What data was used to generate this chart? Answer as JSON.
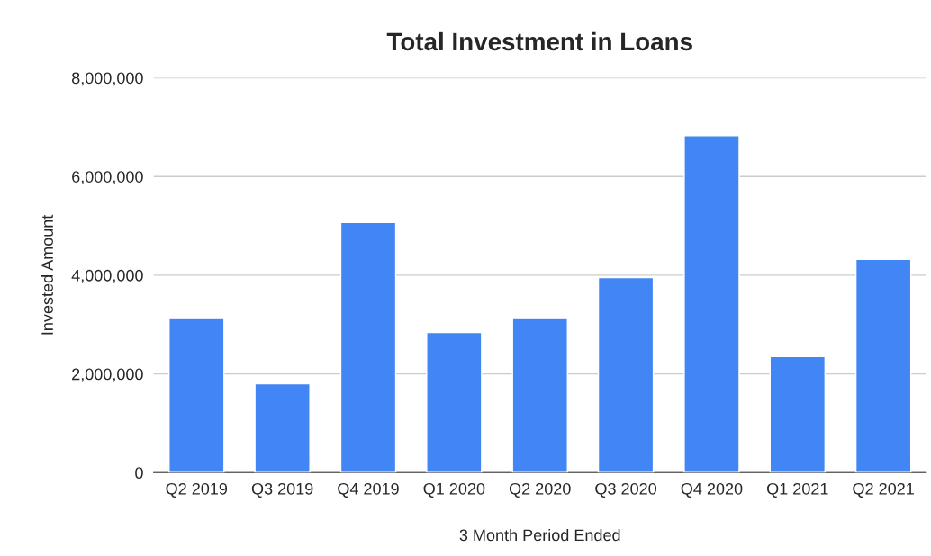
{
  "chart_data": {
    "type": "bar",
    "title": "Total Investment in Loans",
    "xlabel": "3 Month Period Ended",
    "ylabel": "Invested Amount",
    "categories": [
      "Q2 2019",
      "Q3 2019",
      "Q4 2019",
      "Q1 2020",
      "Q2 2020",
      "Q3 2020",
      "Q4 2020",
      "Q1 2021",
      "Q2 2021"
    ],
    "values": [
      3120000,
      1800000,
      5070000,
      2840000,
      3120000,
      3950000,
      6830000,
      2350000,
      4320000
    ],
    "color": "#4285f4",
    "ylim": [
      0,
      8000000
    ],
    "yticks": [
      0,
      {
        "value": 2000000,
        "label": "2,000,000"
      },
      {
        "value": 4000000,
        "label": "4,000,000"
      },
      {
        "value": 6000000,
        "label": "6,000,000"
      },
      {
        "value": 8000000,
        "label": "8,000,000"
      }
    ],
    "grid": "y",
    "legend": false
  }
}
